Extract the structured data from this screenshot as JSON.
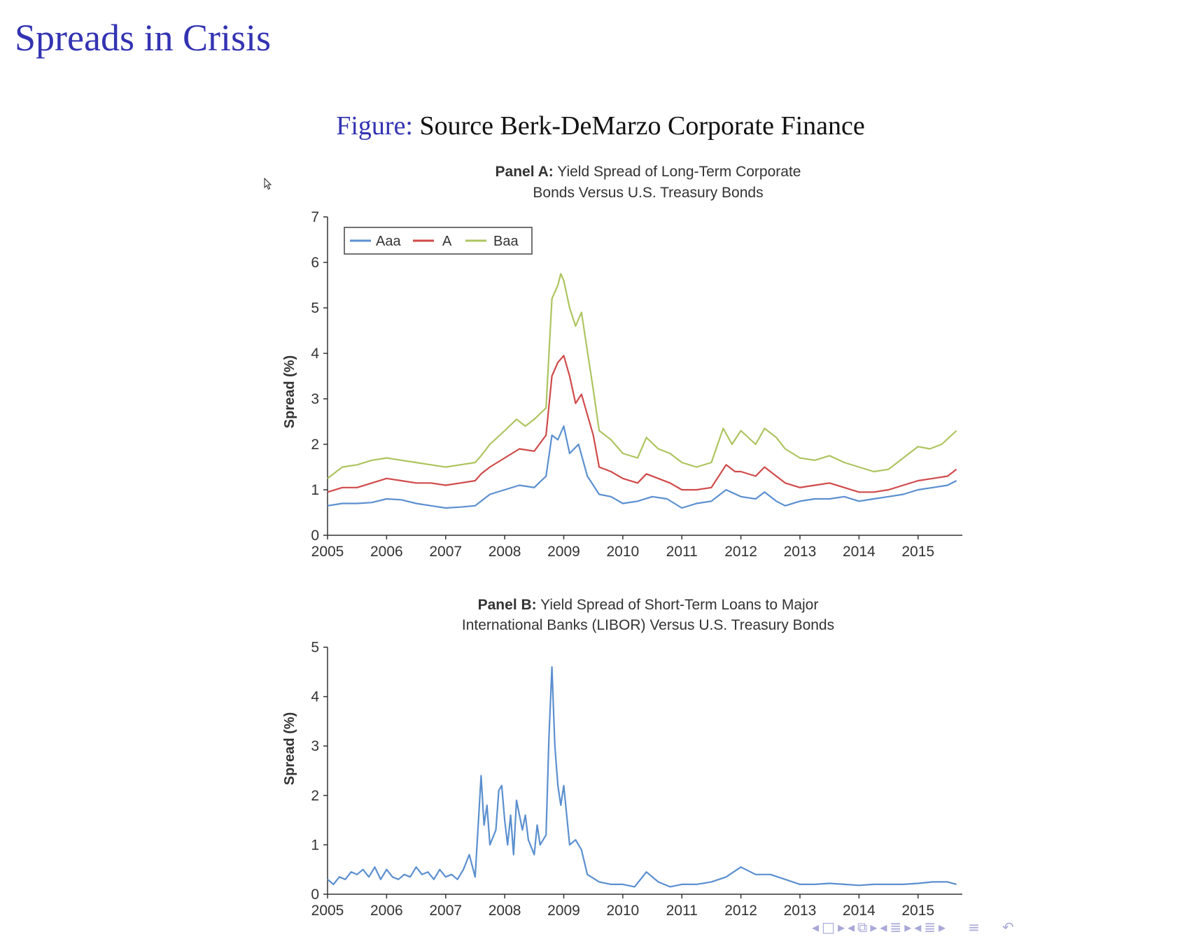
{
  "slide": {
    "title": "Spreads in Crisis",
    "caption_label": "Figure:",
    "caption_text": " Source Berk-DeMarzo Corporate Finance"
  },
  "colors": {
    "title": "#3333b3",
    "aaa": "#5b8fcf",
    "a": "#d04a4a",
    "baa": "#adc45f",
    "libor": "#5b8fcf",
    "axis": "#333333"
  },
  "nav_icons": [
    "nav-left-icon",
    "frame-icon",
    "nav-right-icon",
    "nav-left-icon",
    "subsection-icon",
    "nav-right-icon",
    "nav-left-icon",
    "section-icon",
    "nav-right-icon",
    "nav-left-icon",
    "document-icon",
    "nav-right-icon",
    "menu-icon",
    "search-undo-icon"
  ],
  "chart_data": [
    {
      "type": "line",
      "title_bold": "Panel A:",
      "title_rest": " Yield Spread of Long-Term Corporate",
      "title_line2": "Bonds Versus U.S. Treasury Bonds",
      "ylabel": "Spread (%)",
      "xlabel": "",
      "xlim": [
        2005,
        2015.75
      ],
      "ylim": [
        0,
        7
      ],
      "xticks": [
        "2005",
        "2006",
        "2007",
        "2008",
        "2009",
        "2010",
        "2011",
        "2012",
        "2013",
        "2014",
        "2015"
      ],
      "yticks": [
        "0",
        "1",
        "2",
        "3",
        "4",
        "5",
        "6",
        "7"
      ],
      "grid": false,
      "legend_position": "top-left",
      "series": [
        {
          "name": "Aaa",
          "points": [
            [
              2005,
              0.65
            ],
            [
              2005.25,
              0.7
            ],
            [
              2005.5,
              0.7
            ],
            [
              2005.75,
              0.72
            ],
            [
              2006,
              0.8
            ],
            [
              2006.25,
              0.78
            ],
            [
              2006.5,
              0.7
            ],
            [
              2006.75,
              0.65
            ],
            [
              2007,
              0.6
            ],
            [
              2007.25,
              0.62
            ],
            [
              2007.5,
              0.65
            ],
            [
              2007.6,
              0.75
            ],
            [
              2007.75,
              0.9
            ],
            [
              2008,
              1.0
            ],
            [
              2008.25,
              1.1
            ],
            [
              2008.5,
              1.05
            ],
            [
              2008.7,
              1.3
            ],
            [
              2008.8,
              2.2
            ],
            [
              2008.9,
              2.1
            ],
            [
              2009,
              2.4
            ],
            [
              2009.1,
              1.8
            ],
            [
              2009.25,
              2.0
            ],
            [
              2009.4,
              1.3
            ],
            [
              2009.6,
              0.9
            ],
            [
              2009.8,
              0.85
            ],
            [
              2010,
              0.7
            ],
            [
              2010.25,
              0.75
            ],
            [
              2010.5,
              0.85
            ],
            [
              2010.75,
              0.8
            ],
            [
              2011,
              0.6
            ],
            [
              2011.25,
              0.7
            ],
            [
              2011.5,
              0.75
            ],
            [
              2011.75,
              1.0
            ],
            [
              2012,
              0.85
            ],
            [
              2012.25,
              0.8
            ],
            [
              2012.4,
              0.95
            ],
            [
              2012.6,
              0.75
            ],
            [
              2012.75,
              0.65
            ],
            [
              2013,
              0.75
            ],
            [
              2013.25,
              0.8
            ],
            [
              2013.5,
              0.8
            ],
            [
              2013.75,
              0.85
            ],
            [
              2014,
              0.75
            ],
            [
              2014.25,
              0.8
            ],
            [
              2014.5,
              0.85
            ],
            [
              2014.75,
              0.9
            ],
            [
              2015,
              1.0
            ],
            [
              2015.25,
              1.05
            ],
            [
              2015.5,
              1.1
            ],
            [
              2015.65,
              1.2
            ]
          ]
        },
        {
          "name": "A",
          "points": [
            [
              2005,
              0.95
            ],
            [
              2005.25,
              1.05
            ],
            [
              2005.5,
              1.05
            ],
            [
              2005.75,
              1.15
            ],
            [
              2006,
              1.25
            ],
            [
              2006.25,
              1.2
            ],
            [
              2006.5,
              1.15
            ],
            [
              2006.75,
              1.15
            ],
            [
              2007,
              1.1
            ],
            [
              2007.25,
              1.15
            ],
            [
              2007.5,
              1.2
            ],
            [
              2007.6,
              1.35
            ],
            [
              2007.75,
              1.5
            ],
            [
              2008,
              1.7
            ],
            [
              2008.25,
              1.9
            ],
            [
              2008.5,
              1.85
            ],
            [
              2008.7,
              2.2
            ],
            [
              2008.8,
              3.5
            ],
            [
              2008.9,
              3.8
            ],
            [
              2009,
              3.95
            ],
            [
              2009.1,
              3.5
            ],
            [
              2009.2,
              2.9
            ],
            [
              2009.3,
              3.1
            ],
            [
              2009.5,
              2.2
            ],
            [
              2009.6,
              1.5
            ],
            [
              2009.8,
              1.4
            ],
            [
              2010,
              1.25
            ],
            [
              2010.25,
              1.15
            ],
            [
              2010.4,
              1.35
            ],
            [
              2010.6,
              1.25
            ],
            [
              2010.8,
              1.15
            ],
            [
              2011,
              1.0
            ],
            [
              2011.25,
              1.0
            ],
            [
              2011.5,
              1.05
            ],
            [
              2011.75,
              1.55
            ],
            [
              2011.9,
              1.4
            ],
            [
              2012,
              1.4
            ],
            [
              2012.25,
              1.3
            ],
            [
              2012.4,
              1.5
            ],
            [
              2012.6,
              1.3
            ],
            [
              2012.75,
              1.15
            ],
            [
              2013,
              1.05
            ],
            [
              2013.25,
              1.1
            ],
            [
              2013.5,
              1.15
            ],
            [
              2013.75,
              1.05
            ],
            [
              2014,
              0.95
            ],
            [
              2014.25,
              0.95
            ],
            [
              2014.5,
              1.0
            ],
            [
              2014.75,
              1.1
            ],
            [
              2015,
              1.2
            ],
            [
              2015.25,
              1.25
            ],
            [
              2015.5,
              1.3
            ],
            [
              2015.65,
              1.45
            ]
          ]
        },
        {
          "name": "Baa",
          "points": [
            [
              2005,
              1.25
            ],
            [
              2005.25,
              1.5
            ],
            [
              2005.5,
              1.55
            ],
            [
              2005.75,
              1.65
            ],
            [
              2006,
              1.7
            ],
            [
              2006.25,
              1.65
            ],
            [
              2006.5,
              1.6
            ],
            [
              2006.75,
              1.55
            ],
            [
              2007,
              1.5
            ],
            [
              2007.25,
              1.55
            ],
            [
              2007.5,
              1.6
            ],
            [
              2007.6,
              1.75
            ],
            [
              2007.75,
              2.0
            ],
            [
              2008,
              2.3
            ],
            [
              2008.2,
              2.55
            ],
            [
              2008.35,
              2.4
            ],
            [
              2008.5,
              2.55
            ],
            [
              2008.7,
              2.8
            ],
            [
              2008.8,
              5.2
            ],
            [
              2008.9,
              5.5
            ],
            [
              2008.95,
              5.75
            ],
            [
              2009,
              5.6
            ],
            [
              2009.1,
              5.0
            ],
            [
              2009.2,
              4.6
            ],
            [
              2009.3,
              4.9
            ],
            [
              2009.5,
              3.2
            ],
            [
              2009.6,
              2.3
            ],
            [
              2009.8,
              2.1
            ],
            [
              2010,
              1.8
            ],
            [
              2010.25,
              1.7
            ],
            [
              2010.4,
              2.15
            ],
            [
              2010.6,
              1.9
            ],
            [
              2010.8,
              1.8
            ],
            [
              2011,
              1.6
            ],
            [
              2011.25,
              1.5
            ],
            [
              2011.5,
              1.6
            ],
            [
              2011.7,
              2.35
            ],
            [
              2011.85,
              2.0
            ],
            [
              2012,
              2.3
            ],
            [
              2012.25,
              2.0
            ],
            [
              2012.4,
              2.35
            ],
            [
              2012.6,
              2.15
            ],
            [
              2012.75,
              1.9
            ],
            [
              2013,
              1.7
            ],
            [
              2013.25,
              1.65
            ],
            [
              2013.5,
              1.75
            ],
            [
              2013.75,
              1.6
            ],
            [
              2014,
              1.5
            ],
            [
              2014.25,
              1.4
            ],
            [
              2014.5,
              1.45
            ],
            [
              2014.75,
              1.7
            ],
            [
              2015,
              1.95
            ],
            [
              2015.2,
              1.9
            ],
            [
              2015.4,
              2.0
            ],
            [
              2015.65,
              2.3
            ]
          ]
        }
      ]
    },
    {
      "type": "line",
      "title_bold": "Panel B:",
      "title_rest": " Yield Spread of Short-Term Loans to Major",
      "title_line2": "International Banks (LIBOR) Versus U.S. Treasury Bonds",
      "ylabel": "Spread (%)",
      "xlabel": "",
      "xlim": [
        2005,
        2015.75
      ],
      "ylim": [
        0,
        5
      ],
      "xticks": [
        "2005",
        "2006",
        "2007",
        "2008",
        "2009",
        "2010",
        "2011",
        "2012",
        "2013",
        "2014",
        "2015"
      ],
      "yticks": [
        "0",
        "1",
        "2",
        "3",
        "4",
        "5"
      ],
      "grid": false,
      "series": [
        {
          "name": "",
          "points": [
            [
              2005,
              0.3
            ],
            [
              2005.1,
              0.2
            ],
            [
              2005.2,
              0.35
            ],
            [
              2005.3,
              0.3
            ],
            [
              2005.4,
              0.45
            ],
            [
              2005.5,
              0.4
            ],
            [
              2005.6,
              0.5
            ],
            [
              2005.7,
              0.35
            ],
            [
              2005.8,
              0.55
            ],
            [
              2005.9,
              0.3
            ],
            [
              2006,
              0.5
            ],
            [
              2006.1,
              0.35
            ],
            [
              2006.2,
              0.3
            ],
            [
              2006.3,
              0.4
            ],
            [
              2006.4,
              0.35
            ],
            [
              2006.5,
              0.55
            ],
            [
              2006.6,
              0.4
            ],
            [
              2006.7,
              0.45
            ],
            [
              2006.8,
              0.3
            ],
            [
              2006.9,
              0.5
            ],
            [
              2007,
              0.35
            ],
            [
              2007.1,
              0.4
            ],
            [
              2007.2,
              0.3
            ],
            [
              2007.3,
              0.5
            ],
            [
              2007.4,
              0.8
            ],
            [
              2007.5,
              0.35
            ],
            [
              2007.6,
              2.4
            ],
            [
              2007.65,
              1.4
            ],
            [
              2007.7,
              1.8
            ],
            [
              2007.75,
              1.0
            ],
            [
              2007.85,
              1.3
            ],
            [
              2007.9,
              2.1
            ],
            [
              2007.95,
              2.2
            ],
            [
              2008,
              1.5
            ],
            [
              2008.05,
              1.0
            ],
            [
              2008.1,
              1.6
            ],
            [
              2008.15,
              0.8
            ],
            [
              2008.2,
              1.9
            ],
            [
              2008.3,
              1.3
            ],
            [
              2008.35,
              1.6
            ],
            [
              2008.4,
              1.1
            ],
            [
              2008.5,
              0.8
            ],
            [
              2008.55,
              1.4
            ],
            [
              2008.6,
              1.0
            ],
            [
              2008.7,
              1.2
            ],
            [
              2008.75,
              3.2
            ],
            [
              2008.8,
              4.6
            ],
            [
              2008.85,
              3.0
            ],
            [
              2008.9,
              2.2
            ],
            [
              2008.95,
              1.8
            ],
            [
              2009,
              2.2
            ],
            [
              2009.1,
              1.0
            ],
            [
              2009.2,
              1.1
            ],
            [
              2009.3,
              0.9
            ],
            [
              2009.4,
              0.4
            ],
            [
              2009.6,
              0.25
            ],
            [
              2009.8,
              0.2
            ],
            [
              2010,
              0.2
            ],
            [
              2010.2,
              0.15
            ],
            [
              2010.4,
              0.45
            ],
            [
              2010.6,
              0.25
            ],
            [
              2010.8,
              0.15
            ],
            [
              2011,
              0.2
            ],
            [
              2011.25,
              0.2
            ],
            [
              2011.5,
              0.25
            ],
            [
              2011.75,
              0.35
            ],
            [
              2012,
              0.55
            ],
            [
              2012.25,
              0.4
            ],
            [
              2012.5,
              0.4
            ],
            [
              2012.75,
              0.3
            ],
            [
              2013,
              0.2
            ],
            [
              2013.25,
              0.2
            ],
            [
              2013.5,
              0.22
            ],
            [
              2013.75,
              0.2
            ],
            [
              2014,
              0.18
            ],
            [
              2014.25,
              0.2
            ],
            [
              2014.5,
              0.2
            ],
            [
              2014.75,
              0.2
            ],
            [
              2015,
              0.22
            ],
            [
              2015.25,
              0.25
            ],
            [
              2015.5,
              0.25
            ],
            [
              2015.65,
              0.2
            ]
          ]
        }
      ]
    }
  ]
}
